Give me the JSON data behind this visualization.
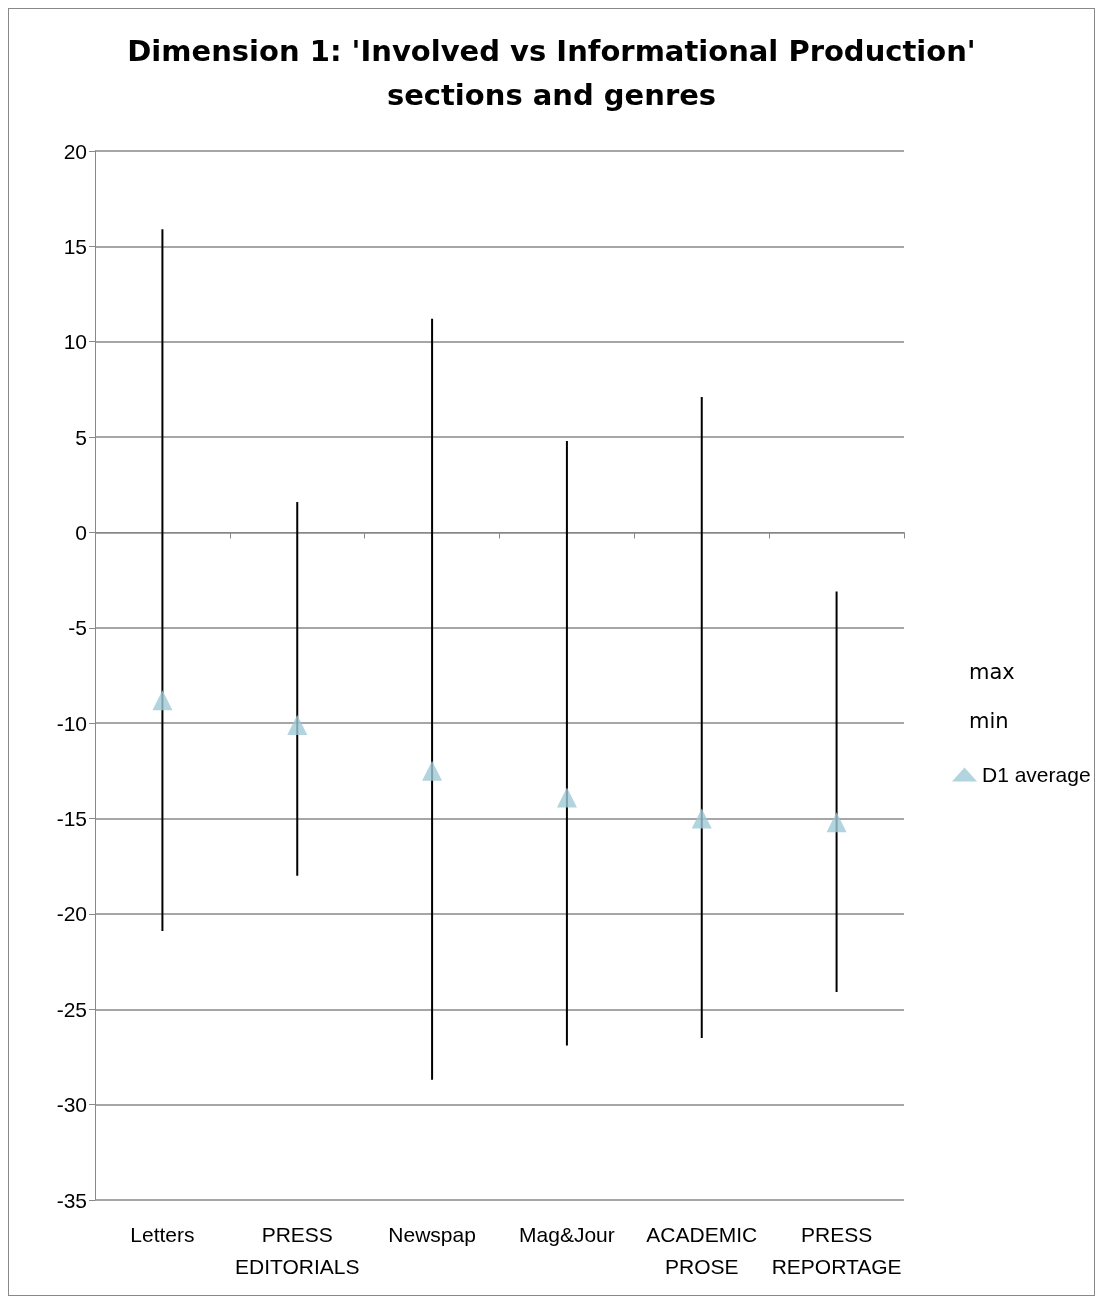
{
  "chart_data": {
    "type": "scatter",
    "title": "Dimension 1: 'Involved vs Informational Production'\nsections and genres",
    "categories": [
      "Letters",
      "PRESS\nEDITORIALS",
      "Newspap",
      "Mag&Jour",
      "ACADEMIC\nPROSE",
      "PRESS\nREPORTAGE"
    ],
    "series": [
      {
        "name": "D1 average",
        "marker": "triangle",
        "color": "#9ec9d6",
        "values": [
          -8.8,
          -10.1,
          -12.5,
          -13.9,
          -15.0,
          -15.2
        ],
        "errors": [
          [
            -20.9,
            15.9
          ],
          [
            -18.0,
            1.6
          ],
          [
            -28.7,
            11.2
          ],
          [
            -26.9,
            4.8
          ],
          [
            -26.5,
            7.1
          ],
          [
            -24.1,
            -3.1
          ]
        ]
      }
    ],
    "annotations": [
      "max",
      "min"
    ],
    "ylim": [
      -35,
      20
    ],
    "yticks": [
      -35,
      -30,
      -25,
      -20,
      -15,
      -10,
      -5,
      0,
      5,
      10,
      15,
      20
    ],
    "grid": "y",
    "legend": "right"
  }
}
